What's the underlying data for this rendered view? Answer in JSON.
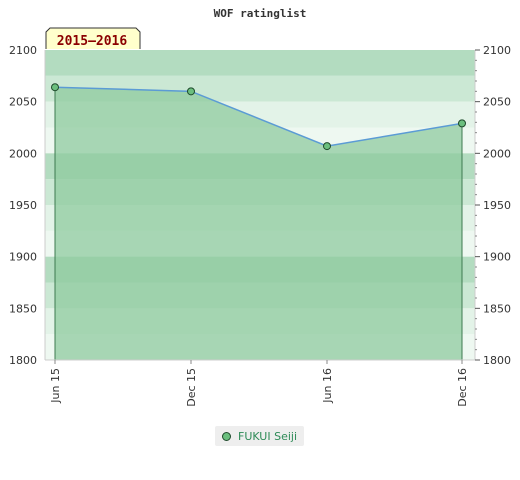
{
  "chart_data": {
    "type": "area",
    "title": "WOF ratinglist",
    "period_label": "2015–2016",
    "categories": [
      "Jun 15",
      "Dec 15",
      "Jun 16",
      "Dec 16"
    ],
    "series": [
      {
        "name": "FUKUI Seiji",
        "values": [
          2064,
          2060,
          2007,
          2029
        ]
      }
    ],
    "ylim": [
      1800,
      2100
    ],
    "yticks": [
      2100,
      2050,
      2000,
      1950,
      1900,
      1850,
      1800
    ],
    "colors": {
      "line": "#5b9bd5",
      "area": "#8fcb9f",
      "marker": "#6bbf7e",
      "marker_edge": "#1e4a2b"
    }
  }
}
